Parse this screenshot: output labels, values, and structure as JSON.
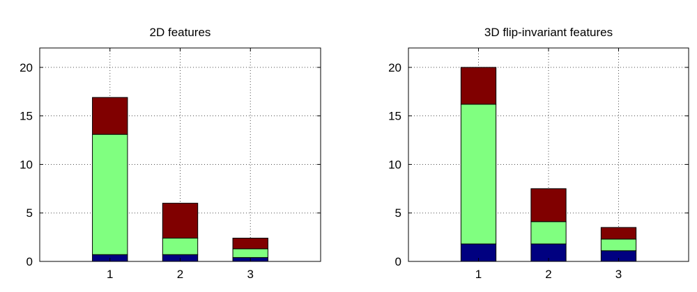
{
  "chart_data": [
    {
      "type": "bar",
      "stacked": true,
      "title": "2D features",
      "categories": [
        "1",
        "2",
        "3"
      ],
      "ylim": [
        0,
        22
      ],
      "yticks": [
        0,
        5,
        10,
        15,
        20
      ],
      "grid": true,
      "series": [
        {
          "color": "#000080",
          "values": [
            0.7,
            0.7,
            0.4
          ]
        },
        {
          "color": "#80ff80",
          "values": [
            12.4,
            1.7,
            0.9
          ]
        },
        {
          "color": "#800000",
          "values": [
            3.8,
            3.6,
            1.1
          ]
        }
      ]
    },
    {
      "type": "bar",
      "stacked": true,
      "title": "3D flip-invariant features",
      "categories": [
        "1",
        "2",
        "3"
      ],
      "ylim": [
        0,
        22
      ],
      "yticks": [
        0,
        5,
        10,
        15,
        20
      ],
      "grid": true,
      "series": [
        {
          "color": "#000080",
          "values": [
            1.8,
            1.8,
            1.1
          ]
        },
        {
          "color": "#80ff80",
          "values": [
            14.4,
            2.3,
            1.2
          ]
        },
        {
          "color": "#800000",
          "values": [
            3.8,
            3.4,
            1.2
          ]
        }
      ]
    }
  ]
}
